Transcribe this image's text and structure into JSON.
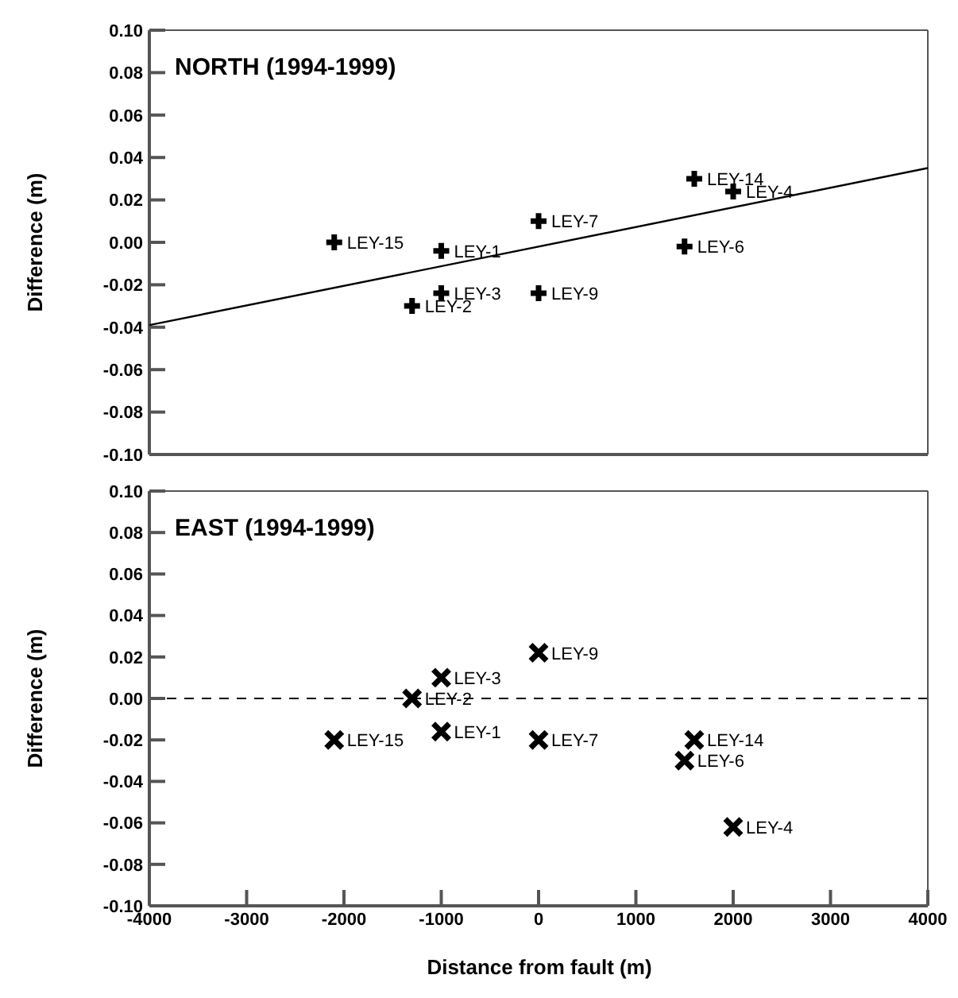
{
  "chart_data": [
    {
      "type": "scatter",
      "title": "NORTH (1994-1999)",
      "ylabel": "Difference (m)",
      "series": [
        {
          "color": "#000000",
          "marker": "plus",
          "x": [
            -2100,
            -1000,
            -1000,
            -1300,
            0,
            0,
            1600,
            2000,
            1500
          ],
          "values": [
            0.0,
            -0.004,
            -0.024,
            -0.03,
            0.01,
            -0.024,
            0.03,
            0.024,
            -0.002
          ]
        },
        {
          "type": "line",
          "color": "#000000",
          "marker": "none",
          "x": [
            -4000,
            4000
          ],
          "values": [
            -0.039,
            0.035
          ]
        }
      ],
      "annotations": [
        {
          "text": "LEY-15",
          "x": -2100,
          "y": 0.0
        },
        {
          "text": "LEY-1",
          "x": -1000,
          "y": -0.004
        },
        {
          "text": "LEY-3",
          "x": -1000,
          "y": -0.024
        },
        {
          "text": "LEY-2",
          "x": -1300,
          "y": -0.03
        },
        {
          "text": "LEY-7",
          "x": 0,
          "y": 0.01
        },
        {
          "text": "LEY-9",
          "x": 0,
          "y": -0.024
        },
        {
          "text": "LEY-14",
          "x": 1600,
          "y": 0.03
        },
        {
          "text": "LEY-4",
          "x": 2000,
          "y": 0.024
        },
        {
          "text": "LEY-6",
          "x": 1500,
          "y": -0.002
        }
      ],
      "xlim": [
        -4000,
        4000
      ],
      "xticks": [
        -4000,
        -3000,
        -2000,
        -1000,
        0,
        1000,
        2000,
        3000,
        4000
      ],
      "ylim": [
        -0.1,
        0.1
      ],
      "yticks": [
        {
          "value": -0.1,
          "label": "-0.10"
        },
        {
          "value": -0.08,
          "label": "-0.08"
        },
        {
          "value": -0.06,
          "label": "-0.06"
        },
        {
          "value": -0.04,
          "label": "-0.04"
        },
        {
          "value": -0.02,
          "label": "-0.02"
        },
        {
          "value": 0,
          "label": "0.00"
        },
        {
          "value": 0.02,
          "label": "0.02"
        },
        {
          "value": 0.04,
          "label": "0.04"
        },
        {
          "value": 0.06,
          "label": "0.06"
        },
        {
          "value": 0.08,
          "label": "0.08"
        },
        {
          "value": 0.1,
          "label": "0.10"
        }
      ],
      "tick_labels": "y",
      "grid": false,
      "legend": false
    },
    {
      "type": "scatter",
      "title": "EAST (1994-1999)",
      "xlabel": "Distance from fault (m)",
      "ylabel": "Difference (m)",
      "series": [
        {
          "color": "#000000",
          "marker": "cross",
          "x": [
            0,
            -1000,
            -1300,
            -2100,
            -1000,
            0,
            1600,
            1500,
            2000
          ],
          "values": [
            0.022,
            0.01,
            0.0,
            -0.02,
            -0.016,
            -0.02,
            -0.02,
            -0.03,
            -0.062
          ]
        }
      ],
      "annotations": [
        {
          "text": "LEY-9",
          "x": 0,
          "y": 0.022
        },
        {
          "text": "LEY-3",
          "x": -1000,
          "y": 0.01
        },
        {
          "text": "LEY-2",
          "x": -1300,
          "y": 0.0
        },
        {
          "text": "LEY-15",
          "x": -2100,
          "y": -0.02
        },
        {
          "text": "LEY-1",
          "x": -1000,
          "y": -0.016
        },
        {
          "text": "LEY-7",
          "x": 0,
          "y": -0.02
        },
        {
          "text": "LEY-14",
          "x": 1600,
          "y": -0.02
        },
        {
          "text": "LEY-6",
          "x": 1500,
          "y": -0.03
        },
        {
          "text": "LEY-4",
          "x": 2000,
          "y": -0.062
        }
      ],
      "ref_lines": [
        {
          "axis": "y",
          "value": 0,
          "color": "#000000",
          "line_style": "dashed"
        }
      ],
      "xlim": [
        -4000,
        4000
      ],
      "xticks": [
        -4000,
        -3000,
        -2000,
        -1000,
        0,
        1000,
        2000,
        3000,
        4000
      ],
      "ylim": [
        -0.1,
        0.1
      ],
      "yticks": [
        {
          "value": -0.1,
          "label": "-0.10"
        },
        {
          "value": -0.08,
          "label": "-0.08"
        },
        {
          "value": -0.06,
          "label": "-0.06"
        },
        {
          "value": -0.04,
          "label": "-0.04"
        },
        {
          "value": -0.02,
          "label": "-0.02"
        },
        {
          "value": 0,
          "label": "0.00"
        },
        {
          "value": 0.02,
          "label": "0.02"
        },
        {
          "value": 0.04,
          "label": "0.04"
        },
        {
          "value": 0.06,
          "label": "0.06"
        },
        {
          "value": 0.08,
          "label": "0.08"
        },
        {
          "value": 0.1,
          "label": "0.10"
        }
      ],
      "grid": false,
      "legend": false
    }
  ]
}
